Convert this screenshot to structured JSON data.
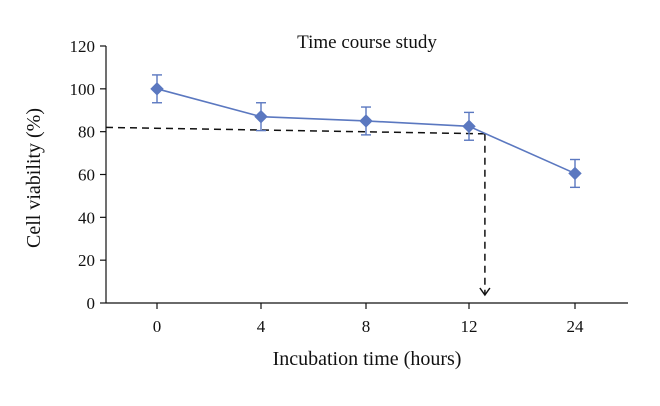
{
  "chart_data": {
    "type": "line",
    "title": "Time course study",
    "xlabel": "Incubation time (hours)",
    "ylabel": "Cell viability (%)",
    "categories": [
      "0",
      "4",
      "8",
      "12",
      "24"
    ],
    "ylim": [
      0,
      120
    ],
    "yticks": [
      "0",
      "20",
      "40",
      "60",
      "80",
      "100",
      "120"
    ],
    "grid": false,
    "series": [
      {
        "values": [
          100,
          87,
          85,
          82.5,
          60.5
        ],
        "error": [
          6.5,
          6.5,
          6.5,
          6.5,
          6.5
        ],
        "color": "#5b78c0",
        "marker": "diamond"
      }
    ],
    "annotations": {
      "dashed_line_color": "#111111",
      "horizontal_dash_start_y": 82,
      "horizontal_dash_end_y": 79,
      "vertical_dash_category_position": 3.15,
      "arrow_direction": "down"
    }
  }
}
